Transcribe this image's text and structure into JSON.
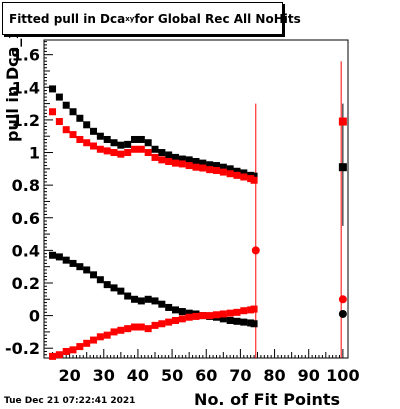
{
  "title": {
    "prefix": "Fitted pull in Dca",
    "subscript": "xy",
    "suffix": " for Global Rec All NoHits"
  },
  "timestamp": "Tue Dec 21 07:22:41 2021",
  "colors": {
    "series_black": "#000000",
    "series_red": "#ff0000",
    "axis": "#000000"
  },
  "chart_data": {
    "type": "scatter",
    "title": "Fitted pull in Dca_xy for Global Rec All NoHits",
    "xlabel": "No. of Fit Points",
    "ylabel": "pull in Dca_xy",
    "xlim": [
      12.5,
      101.5
    ],
    "ylim": [
      -0.26,
      1.69
    ],
    "x_ticks": [
      20,
      30,
      40,
      50,
      60,
      70,
      80,
      90,
      100
    ],
    "x_tick_labels": [
      "20",
      "30",
      "40",
      "50",
      "60",
      "70",
      "80",
      "90",
      "100"
    ],
    "y_ticks": [
      -0.2,
      0,
      0.2,
      0.4,
      0.6,
      0.8,
      1,
      1.2,
      1.4,
      1.6
    ],
    "y_tick_labels": [
      "-0.2",
      "0",
      "0.2",
      "0.4",
      "0.6",
      "0.8",
      "1",
      "1.2",
      "1.4",
      "1.6"
    ],
    "grid": false,
    "series": [
      {
        "values": [
          [
            15,
            1.39
          ],
          [
            17,
            1.34
          ],
          [
            19,
            1.29
          ],
          [
            21,
            1.25
          ],
          [
            23,
            1.21
          ],
          [
            25,
            1.17
          ],
          [
            27,
            1.13
          ],
          [
            29,
            1.1
          ],
          [
            31,
            1.08
          ],
          [
            33,
            1.06
          ],
          [
            35,
            1.045
          ],
          [
            37,
            1.05
          ],
          [
            39,
            1.08
          ],
          [
            41,
            1.08
          ],
          [
            43,
            1.06
          ],
          [
            45,
            1.02
          ],
          [
            47,
            1.0
          ],
          [
            49,
            0.985
          ],
          [
            51,
            0.97
          ],
          [
            53,
            0.96
          ],
          [
            55,
            0.955
          ],
          [
            57,
            0.945
          ],
          [
            59,
            0.935
          ],
          [
            61,
            0.925
          ],
          [
            63,
            0.92
          ],
          [
            65,
            0.91
          ],
          [
            67,
            0.9
          ],
          [
            69,
            0.885
          ],
          [
            71,
            0.875
          ],
          [
            73,
            0.86
          ],
          [
            74,
            0.855
          ],
          [
            100,
            0.91
          ]
        ]
      },
      {
        "values": [
          [
            15,
            1.25
          ],
          [
            17,
            1.19
          ],
          [
            19,
            1.14
          ],
          [
            21,
            1.11
          ],
          [
            23,
            1.08
          ],
          [
            25,
            1.06
          ],
          [
            27,
            1.04
          ],
          [
            29,
            1.02
          ],
          [
            31,
            1.01
          ],
          [
            33,
            1.0
          ],
          [
            35,
            0.99
          ],
          [
            37,
            1.0
          ],
          [
            39,
            1.02
          ],
          [
            41,
            1.02
          ],
          [
            43,
            1.0
          ],
          [
            45,
            0.97
          ],
          [
            47,
            0.955
          ],
          [
            49,
            0.945
          ],
          [
            51,
            0.935
          ],
          [
            53,
            0.93
          ],
          [
            55,
            0.92
          ],
          [
            57,
            0.91
          ],
          [
            59,
            0.905
          ],
          [
            61,
            0.895
          ],
          [
            63,
            0.89
          ],
          [
            65,
            0.88
          ],
          [
            67,
            0.87
          ],
          [
            69,
            0.86
          ],
          [
            71,
            0.85
          ],
          [
            73,
            0.84
          ],
          [
            74,
            0.83
          ],
          [
            74.5,
            0.4
          ],
          [
            100,
            1.19
          ],
          [
            100,
            0.1
          ]
        ]
      },
      {
        "values": [
          [
            15,
            0.37
          ],
          [
            17,
            0.36
          ],
          [
            19,
            0.34
          ],
          [
            21,
            0.32
          ],
          [
            23,
            0.3
          ],
          [
            25,
            0.28
          ],
          [
            27,
            0.25
          ],
          [
            29,
            0.22
          ],
          [
            31,
            0.19
          ],
          [
            33,
            0.17
          ],
          [
            35,
            0.15
          ],
          [
            37,
            0.12
          ],
          [
            39,
            0.1
          ],
          [
            41,
            0.09
          ],
          [
            43,
            0.1
          ],
          [
            45,
            0.09
          ],
          [
            47,
            0.07
          ],
          [
            49,
            0.05
          ],
          [
            51,
            0.035
          ],
          [
            53,
            0.025
          ],
          [
            55,
            0.015
          ],
          [
            57,
            0.01
          ],
          [
            59,
            0.0
          ],
          [
            61,
            -0.005
          ],
          [
            63,
            -0.01
          ],
          [
            65,
            -0.02
          ],
          [
            67,
            -0.03
          ],
          [
            69,
            -0.035
          ],
          [
            71,
            -0.04
          ],
          [
            73,
            -0.045
          ],
          [
            74,
            -0.05
          ],
          [
            100,
            0.01
          ]
        ]
      },
      {
        "values": [
          [
            15,
            -0.25
          ],
          [
            17,
            -0.24
          ],
          [
            19,
            -0.22
          ],
          [
            21,
            -0.21
          ],
          [
            23,
            -0.19
          ],
          [
            25,
            -0.17
          ],
          [
            27,
            -0.15
          ],
          [
            29,
            -0.13
          ],
          [
            31,
            -0.12
          ],
          [
            33,
            -0.1
          ],
          [
            35,
            -0.09
          ],
          [
            37,
            -0.08
          ],
          [
            39,
            -0.07
          ],
          [
            41,
            -0.07
          ],
          [
            43,
            -0.08
          ],
          [
            45,
            -0.06
          ],
          [
            47,
            -0.05
          ],
          [
            49,
            -0.04
          ],
          [
            51,
            -0.03
          ],
          [
            53,
            -0.02
          ],
          [
            55,
            -0.01
          ],
          [
            57,
            -0.005
          ],
          [
            59,
            0.0
          ],
          [
            61,
            0.0
          ],
          [
            63,
            0.005
          ],
          [
            65,
            0.01
          ],
          [
            67,
            0.015
          ],
          [
            69,
            0.02
          ],
          [
            71,
            0.03
          ],
          [
            73,
            0.035
          ],
          [
            74,
            0.04
          ]
        ]
      }
    ],
    "error_bars": [
      {
        "x": 74.5,
        "y_low": -0.26,
        "y_high": 1.3
      },
      {
        "x": 99.5,
        "y_low": -0.26,
        "y_high": 1.56
      },
      {
        "x": 100,
        "y_low": 0.55,
        "y_high": 1.3
      }
    ]
  }
}
